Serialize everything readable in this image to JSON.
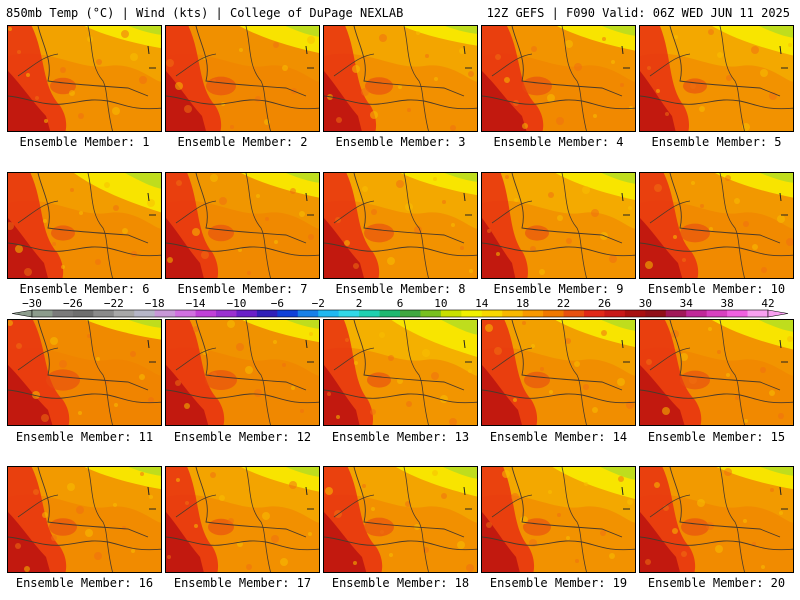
{
  "header": {
    "left": "850mb Temp (°C) | Wind (kts) | College of DuPage NEXLAB",
    "right": "12Z GEFS | F090 Valid: 06Z WED JUN 11 2025"
  },
  "members": [
    "Ensemble Member: 1",
    "Ensemble Member: 2",
    "Ensemble Member: 3",
    "Ensemble Member: 4",
    "Ensemble Member: 5",
    "Ensemble Member: 6",
    "Ensemble Member: 7",
    "Ensemble Member: 8",
    "Ensemble Member: 9",
    "Ensemble Member: 10",
    "Ensemble Member: 11",
    "Ensemble Member: 12",
    "Ensemble Member: 13",
    "Ensemble Member: 14",
    "Ensemble Member: 15",
    "Ensemble Member: 16",
    "Ensemble Member: 17",
    "Ensemble Member: 18",
    "Ensemble Member: 19",
    "Ensemble Member: 20"
  ],
  "colorbar": {
    "labels": [
      "−30",
      "−26",
      "−22",
      "−18",
      "−14",
      "−10",
      "−6",
      "−2",
      "2",
      "6",
      "10",
      "14",
      "18",
      "22",
      "26",
      "30",
      "34",
      "38",
      "42"
    ],
    "colors": [
      "#8c9c8c",
      "#7a7a7a",
      "#6e6e6e",
      "#8a8a8a",
      "#a8a8a8",
      "#b6b6c8",
      "#c898d8",
      "#d070e0",
      "#c040d8",
      "#9a30d0",
      "#6a20c8",
      "#3020b8",
      "#1040d8",
      "#1880e8",
      "#20b8f0",
      "#30d8e8",
      "#20d0b0",
      "#20b870",
      "#40a840",
      "#78c020",
      "#c8e000",
      "#f0f000",
      "#f8d800",
      "#f8b800",
      "#f89800",
      "#f07800",
      "#e85010",
      "#e02818",
      "#c81818",
      "#a81010",
      "#901018",
      "#a01858",
      "#c02898",
      "#d840c0",
      "#f060e0",
      "#f8a0f0"
    ]
  },
  "fields": [
    {
      "base": "#f2a200",
      "west": 0.95,
      "northeast": 0.45,
      "hot": 0.35
    },
    {
      "base": "#f09000",
      "west": 0.9,
      "northeast": 0.55,
      "hot": 0.45
    },
    {
      "base": "#f3a500",
      "west": 0.85,
      "northeast": 0.4,
      "hot": 0.4
    },
    {
      "base": "#f29400",
      "west": 1.0,
      "northeast": 0.5,
      "hot": 0.45
    },
    {
      "base": "#f3a800",
      "west": 0.8,
      "northeast": 0.6,
      "hot": 0.3
    },
    {
      "base": "#f29c00",
      "west": 0.9,
      "northeast": 0.8,
      "hot": 0.3
    },
    {
      "base": "#f09600",
      "west": 0.85,
      "northeast": 0.5,
      "hot": 0.35
    },
    {
      "base": "#f3a800",
      "west": 0.9,
      "northeast": 0.45,
      "hot": 0.45
    },
    {
      "base": "#f4aa00",
      "west": 0.75,
      "northeast": 0.55,
      "hot": 0.3
    },
    {
      "base": "#f29800",
      "west": 0.95,
      "northeast": 0.5,
      "hot": 0.45
    },
    {
      "base": "#f08a00",
      "west": 1.0,
      "northeast": 0.4,
      "hot": 0.55
    },
    {
      "base": "#f09200",
      "west": 0.95,
      "northeast": 0.45,
      "hot": 0.5
    },
    {
      "base": "#f4b000",
      "west": 0.8,
      "northeast": 0.75,
      "hot": 0.3
    },
    {
      "base": "#f2a000",
      "west": 0.9,
      "northeast": 0.55,
      "hot": 0.35
    },
    {
      "base": "#f29400",
      "west": 1.0,
      "northeast": 0.6,
      "hot": 0.45
    },
    {
      "base": "#f29a00",
      "west": 0.95,
      "northeast": 0.45,
      "hot": 0.4
    },
    {
      "base": "#f3a400",
      "west": 0.85,
      "northeast": 0.5,
      "hot": 0.35
    },
    {
      "base": "#f3a400",
      "west": 0.95,
      "northeast": 0.6,
      "hot": 0.45
    },
    {
      "base": "#f3a800",
      "west": 0.85,
      "northeast": 0.65,
      "hot": 0.4
    },
    {
      "base": "#f29a00",
      "west": 0.9,
      "northeast": 0.45,
      "hot": 0.4
    }
  ]
}
